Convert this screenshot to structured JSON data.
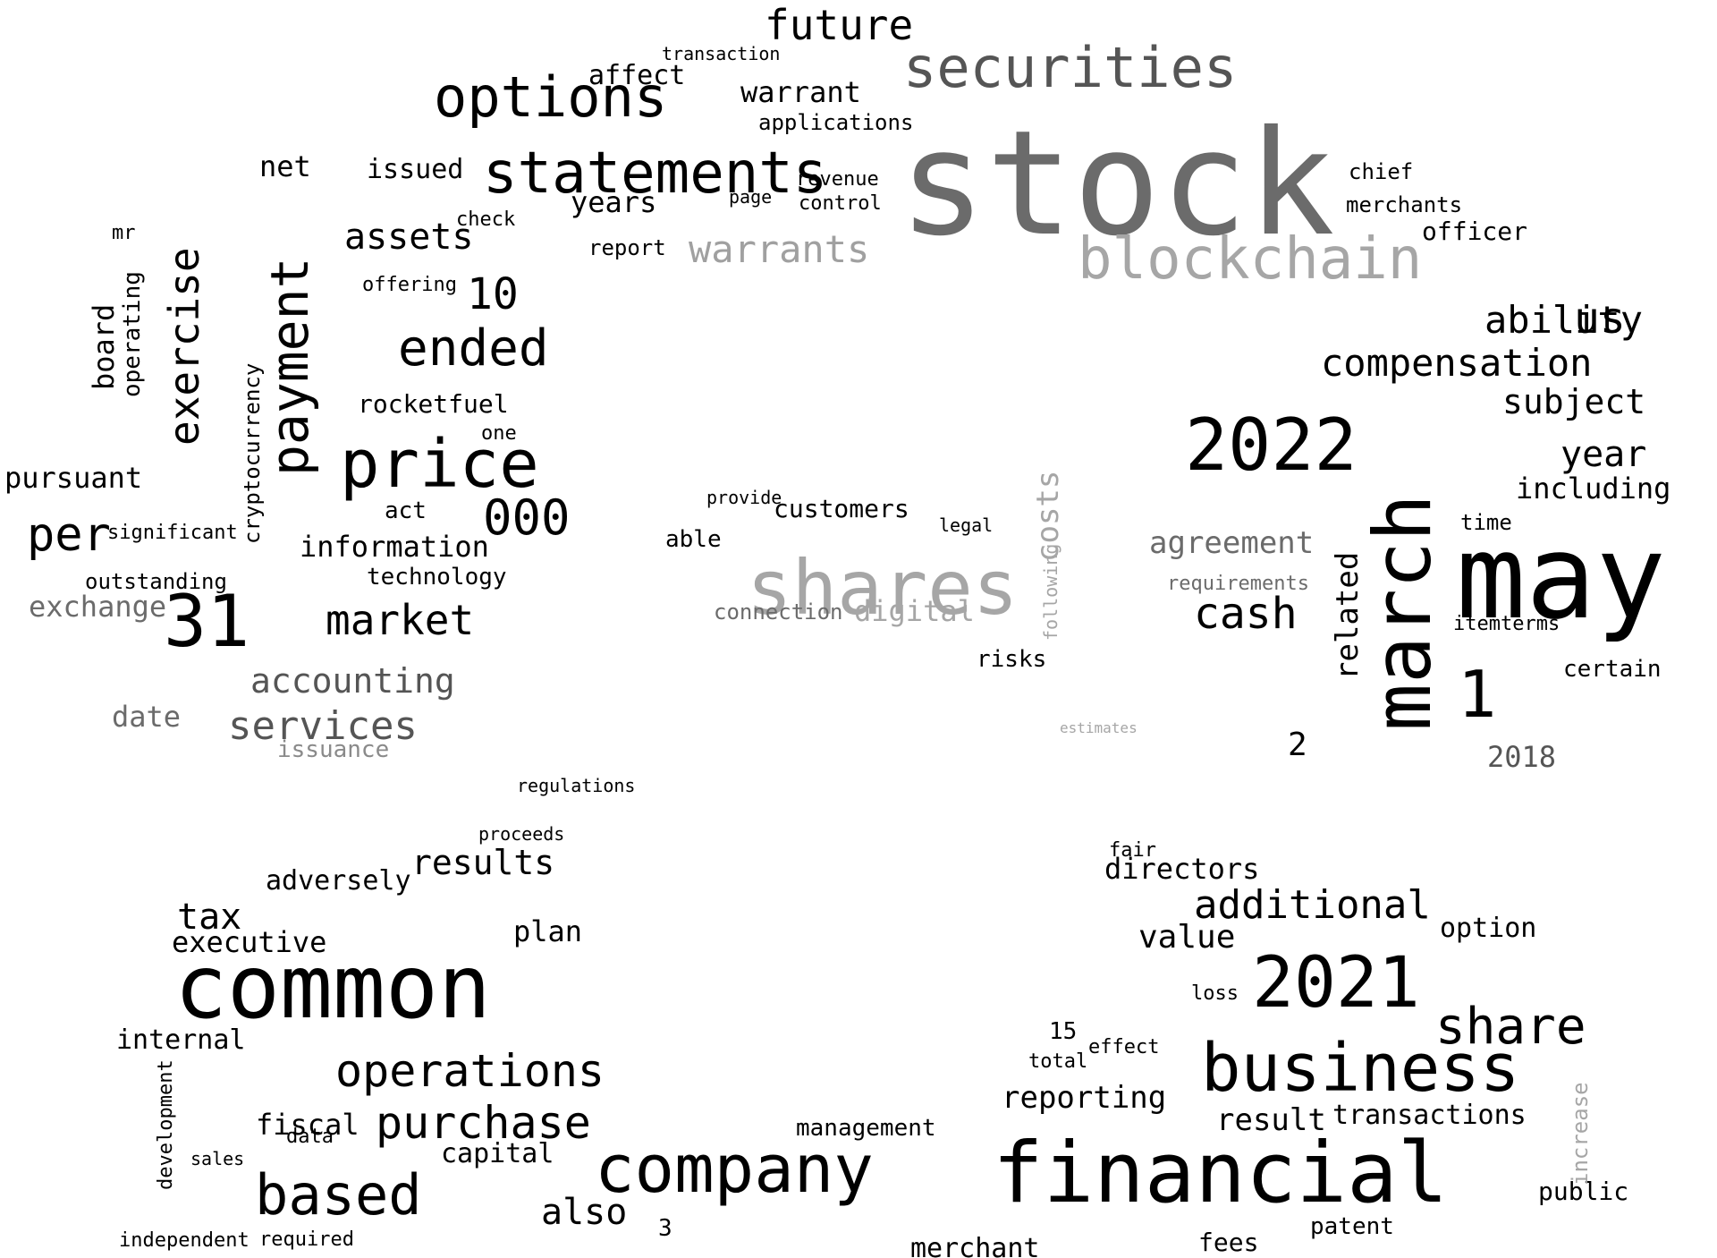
{
  "words": [
    {
      "text": "stock",
      "tone": "#6b6b6b"
    },
    {
      "text": "blockchain",
      "tone": "#a6a6a6"
    },
    {
      "text": "securities",
      "tone": "#555555"
    },
    {
      "text": "statements",
      "tone": "#000000"
    },
    {
      "text": "options",
      "tone": "#000000"
    },
    {
      "text": "future",
      "tone": "#000000"
    },
    {
      "text": "warrants",
      "tone": "#a0a0a0"
    },
    {
      "text": "warrant",
      "tone": "#000000"
    },
    {
      "text": "applications",
      "tone": "#000000"
    },
    {
      "text": "price",
      "tone": "#000000"
    },
    {
      "text": "payment",
      "tone": "#000000"
    },
    {
      "text": "exercise",
      "tone": "#000000"
    },
    {
      "text": "ended",
      "tone": "#000000"
    },
    {
      "text": "assets",
      "tone": "#000000"
    },
    {
      "text": "issued",
      "tone": "#000000"
    },
    {
      "text": "years",
      "tone": "#000000"
    },
    {
      "text": "affect",
      "tone": "#000000"
    },
    {
      "text": "transaction",
      "tone": "#000000"
    },
    {
      "text": "revenue",
      "tone": "#000000"
    },
    {
      "text": "control",
      "tone": "#000000"
    },
    {
      "text": "report",
      "tone": "#000000"
    },
    {
      "text": "page",
      "tone": "#000000"
    },
    {
      "text": "rocketfuel",
      "tone": "#000000"
    },
    {
      "text": "000",
      "tone": "#000000"
    },
    {
      "text": "10",
      "tone": "#000000"
    },
    {
      "text": "offering",
      "tone": "#000000"
    },
    {
      "text": "information",
      "tone": "#000000"
    },
    {
      "text": "market",
      "tone": "#000000"
    },
    {
      "text": "technology",
      "tone": "#000000"
    },
    {
      "text": "accounting",
      "tone": "#555555"
    },
    {
      "text": "services",
      "tone": "#555555"
    },
    {
      "text": "issuance",
      "tone": "#8a8a8a"
    },
    {
      "text": "date",
      "tone": "#6b6b6b"
    },
    {
      "text": "exchange",
      "tone": "#6b6b6b"
    },
    {
      "text": "31",
      "tone": "#000000"
    },
    {
      "text": "per",
      "tone": "#000000"
    },
    {
      "text": "pursuant",
      "tone": "#000000"
    },
    {
      "text": "board",
      "tone": "#000000"
    },
    {
      "text": "operating",
      "tone": "#000000"
    },
    {
      "text": "cryptocurrency",
      "tone": "#000000"
    },
    {
      "text": "outstanding",
      "tone": "#000000"
    },
    {
      "text": "significant",
      "tone": "#000000"
    },
    {
      "text": "net",
      "tone": "#000000"
    },
    {
      "text": "mr",
      "tone": "#000000"
    },
    {
      "text": "act",
      "tone": "#000000"
    },
    {
      "text": "one",
      "tone": "#000000"
    },
    {
      "text": "check",
      "tone": "#000000"
    },
    {
      "text": "shares",
      "tone": "#a6a6a6"
    },
    {
      "text": "digital",
      "tone": "#a6a6a6"
    },
    {
      "text": "costs",
      "tone": "#a6a6a6"
    },
    {
      "text": "customers",
      "tone": "#000000"
    },
    {
      "text": "connection",
      "tone": "#6b6b6b"
    },
    {
      "text": "able",
      "tone": "#000000"
    },
    {
      "text": "provide",
      "tone": "#000000"
    },
    {
      "text": "legal",
      "tone": "#000000"
    },
    {
      "text": "risks",
      "tone": "#000000"
    },
    {
      "text": "following",
      "tone": "#a6a6a6"
    },
    {
      "text": "estimates",
      "tone": "#a6a6a6"
    },
    {
      "text": "march",
      "tone": "#000000"
    },
    {
      "text": "may",
      "tone": "#000000"
    },
    {
      "text": "2022",
      "tone": "#000000"
    },
    {
      "text": "compensation",
      "tone": "#000000"
    },
    {
      "text": "ability",
      "tone": "#000000"
    },
    {
      "text": "us",
      "tone": "#000000"
    },
    {
      "text": "subject",
      "tone": "#000000"
    },
    {
      "text": "year",
      "tone": "#000000"
    },
    {
      "text": "including",
      "tone": "#000000"
    },
    {
      "text": "agreement",
      "tone": "#6b6b6b"
    },
    {
      "text": "requirements",
      "tone": "#6b6b6b"
    },
    {
      "text": "cash",
      "tone": "#000000"
    },
    {
      "text": "related",
      "tone": "#000000"
    },
    {
      "text": "1",
      "tone": "#000000"
    },
    {
      "text": "2",
      "tone": "#000000"
    },
    {
      "text": "2018",
      "tone": "#555555"
    },
    {
      "text": "officer",
      "tone": "#000000"
    },
    {
      "text": "merchants",
      "tone": "#000000"
    },
    {
      "text": "chief",
      "tone": "#000000"
    },
    {
      "text": "certain",
      "tone": "#000000"
    },
    {
      "text": "itemterms",
      "tone": "#000000"
    },
    {
      "text": "time",
      "tone": "#000000"
    },
    {
      "text": "common",
      "tone": "#000000"
    },
    {
      "text": "company",
      "tone": "#000000"
    },
    {
      "text": "based",
      "tone": "#000000"
    },
    {
      "text": "operations",
      "tone": "#000000"
    },
    {
      "text": "purchase",
      "tone": "#000000"
    },
    {
      "text": "results",
      "tone": "#000000"
    },
    {
      "text": "adversely",
      "tone": "#000000"
    },
    {
      "text": "executive",
      "tone": "#000000"
    },
    {
      "text": "tax",
      "tone": "#000000"
    },
    {
      "text": "internal",
      "tone": "#000000"
    },
    {
      "text": "fiscal",
      "tone": "#000000"
    },
    {
      "text": "capital",
      "tone": "#000000"
    },
    {
      "text": "plan",
      "tone": "#000000"
    },
    {
      "text": "also",
      "tone": "#000000"
    },
    {
      "text": "3",
      "tone": "#000000"
    },
    {
      "text": "data",
      "tone": "#000000"
    },
    {
      "text": "management",
      "tone": "#000000"
    },
    {
      "text": "merchant",
      "tone": "#000000"
    },
    {
      "text": "financial",
      "tone": "#000000"
    },
    {
      "text": "business",
      "tone": "#000000"
    },
    {
      "text": "2021",
      "tone": "#000000"
    },
    {
      "text": "share",
      "tone": "#000000"
    },
    {
      "text": "additional",
      "tone": "#000000"
    },
    {
      "text": "value",
      "tone": "#000000"
    },
    {
      "text": "directors",
      "tone": "#000000"
    },
    {
      "text": "reporting",
      "tone": "#000000"
    },
    {
      "text": "result",
      "tone": "#000000"
    },
    {
      "text": "transactions",
      "tone": "#000000"
    },
    {
      "text": "option",
      "tone": "#000000"
    },
    {
      "text": "fees",
      "tone": "#000000"
    },
    {
      "text": "public",
      "tone": "#000000"
    },
    {
      "text": "loss",
      "tone": "#000000"
    },
    {
      "text": "increase",
      "tone": "#a6a6a6"
    },
    {
      "text": "15",
      "tone": "#000000"
    },
    {
      "text": "total",
      "tone": "#000000"
    },
    {
      "text": "effect",
      "tone": "#000000"
    },
    {
      "text": "patent",
      "tone": "#000000"
    },
    {
      "text": "fair",
      "tone": "#000000"
    },
    {
      "text": "regulations",
      "tone": "#000000"
    },
    {
      "text": "proceeds",
      "tone": "#000000"
    },
    {
      "text": "independent",
      "tone": "#000000"
    },
    {
      "text": "required",
      "tone": "#000000"
    },
    {
      "text": "development",
      "tone": "#000000"
    },
    {
      "text": "sales",
      "tone": "#000000"
    }
  ]
}
